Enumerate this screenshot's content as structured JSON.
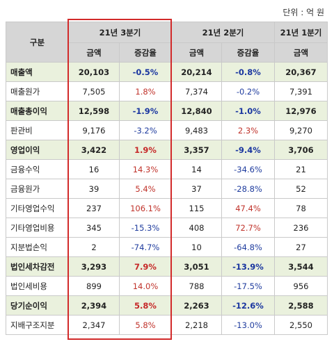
{
  "unit_label": "단위 : 억 원",
  "header": {
    "category": "구분",
    "q3": "21년 3분기",
    "q2": "21년 2분기",
    "q1": "21년 1분기",
    "amount": "금액",
    "change": "증감율"
  },
  "rows": [
    {
      "label": "매출액",
      "q3_amount": "20,103",
      "q3_change": "-0.5%",
      "q2_amount": "20,214",
      "q2_change": "-0.8%",
      "q1_amount": "20,367",
      "highlight": true
    },
    {
      "label": "매출원가",
      "q3_amount": "7,505",
      "q3_change": "1.8%",
      "q2_amount": "7,374",
      "q2_change": "-0.2%",
      "q1_amount": "7,391",
      "highlight": false
    },
    {
      "label": "매출총이익",
      "q3_amount": "12,598",
      "q3_change": "-1.9%",
      "q2_amount": "12,840",
      "q2_change": "-1.0%",
      "q1_amount": "12,976",
      "highlight": true
    },
    {
      "label": "판관비",
      "q3_amount": "9,176",
      "q3_change": "-3.2%",
      "q2_amount": "9,483",
      "q2_change": "2.3%",
      "q1_amount": "9,270",
      "highlight": false
    },
    {
      "label": "영업이익",
      "q3_amount": "3,422",
      "q3_change": "1.9%",
      "q2_amount": "3,357",
      "q2_change": "-9.4%",
      "q1_amount": "3,706",
      "highlight": true
    },
    {
      "label": "금융수익",
      "q3_amount": "16",
      "q3_change": "14.3%",
      "q2_amount": "14",
      "q2_change": "-34.6%",
      "q1_amount": "21",
      "highlight": false
    },
    {
      "label": "금융원가",
      "q3_amount": "39",
      "q3_change": "5.4%",
      "q2_amount": "37",
      "q2_change": "-28.8%",
      "q1_amount": "52",
      "highlight": false
    },
    {
      "label": "기타영업수익",
      "q3_amount": "237",
      "q3_change": "106.1%",
      "q2_amount": "115",
      "q2_change": "47.4%",
      "q1_amount": "78",
      "highlight": false
    },
    {
      "label": "기타영업비용",
      "q3_amount": "345",
      "q3_change": "-15.3%",
      "q2_amount": "408",
      "q2_change": "72.7%",
      "q1_amount": "236",
      "highlight": false
    },
    {
      "label": "지분법손익",
      "q3_amount": "2",
      "q3_change": "-74.7%",
      "q2_amount": "10",
      "q2_change": "-64.8%",
      "q1_amount": "27",
      "highlight": false
    },
    {
      "label": "법인세차감전",
      "q3_amount": "3,293",
      "q3_change": "7.9%",
      "q2_amount": "3,051",
      "q2_change": "-13.9%",
      "q1_amount": "3,544",
      "highlight": true
    },
    {
      "label": "법인세비용",
      "q3_amount": "899",
      "q3_change": "14.0%",
      "q2_amount": "788",
      "q2_change": "-17.5%",
      "q1_amount": "956",
      "highlight": false
    },
    {
      "label": "당기순이익",
      "q3_amount": "2,394",
      "q3_change": "5.8%",
      "q2_amount": "2,263",
      "q2_change": "-12.6%",
      "q1_amount": "2,588",
      "highlight": true
    },
    {
      "label": "지배구조지분",
      "q3_amount": "2,347",
      "q3_change": "5.8%",
      "q2_amount": "2,218",
      "q2_change": "-13.0%",
      "q1_amount": "2,550",
      "highlight": false
    }
  ],
  "colors": {
    "header_bg": "#d6d6d6",
    "highlight_bg": "#eaf1dd",
    "positive": "#c0332b",
    "negative": "#1f3c9e",
    "frame": "#d22a2a"
  }
}
